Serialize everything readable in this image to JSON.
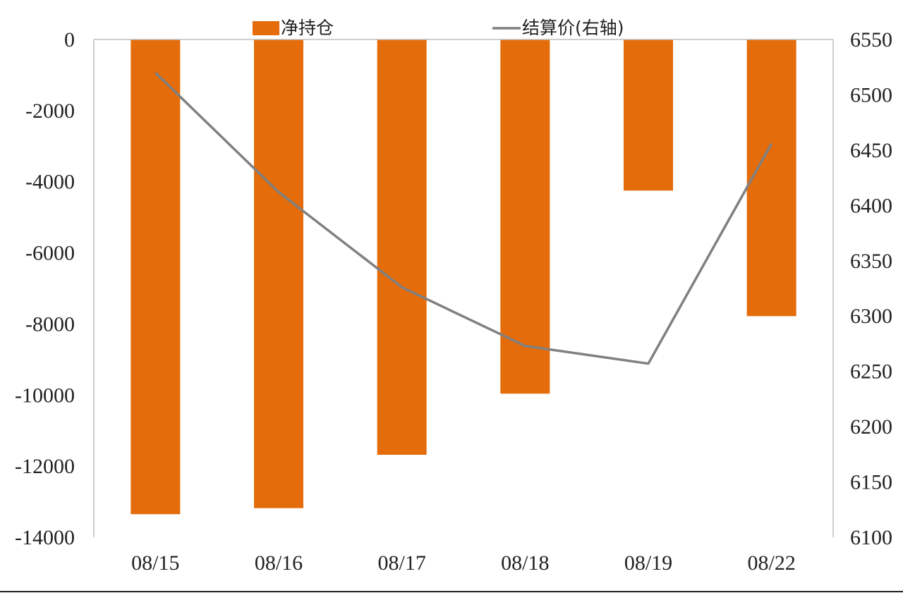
{
  "chart_data": {
    "type": "bar",
    "categories": [
      "08/15",
      "08/16",
      "08/17",
      "08/18",
      "08/19",
      "08/22"
    ],
    "series": [
      {
        "name": "净持仓",
        "type": "bar",
        "axis": "left",
        "color": "#e46c0a",
        "values": [
          -13350,
          -13180,
          -11680,
          -9960,
          -4250,
          -7780
        ]
      },
      {
        "name": "结算价(右轴)",
        "type": "line",
        "axis": "right",
        "color": "#808080",
        "values": [
          6520,
          6412,
          6326,
          6273,
          6257,
          6456
        ]
      }
    ],
    "y_left": {
      "min": -14000,
      "max": 0,
      "ticks": [
        "0",
        "-2000",
        "-4000",
        "-6000",
        "-8000",
        "-10000",
        "-12000",
        "-14000"
      ]
    },
    "y_right": {
      "min": 6100,
      "max": 6550,
      "ticks": [
        "6550",
        "6500",
        "6450",
        "6400",
        "6350",
        "6300",
        "6250",
        "6200",
        "6150",
        "6100"
      ]
    },
    "grid": false,
    "legend_position": "top"
  }
}
